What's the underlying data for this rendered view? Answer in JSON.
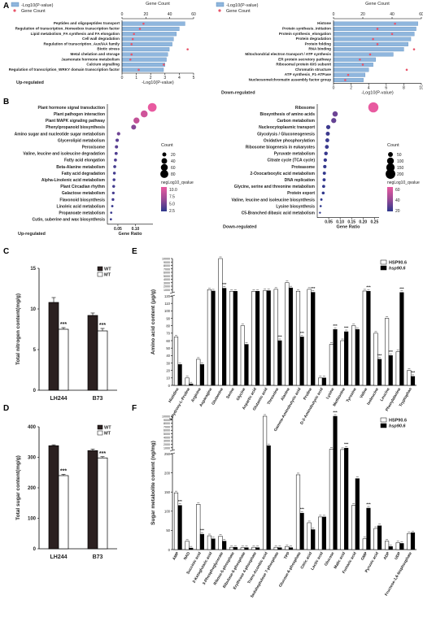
{
  "panel_labels": [
    "A",
    "B",
    "C",
    "D",
    "E",
    "F"
  ],
  "chart_data": [
    {
      "panel": "A",
      "type": "bar",
      "side": "up",
      "top_axis_label": "Gene Count",
      "top_ticks": [
        "0",
        "20",
        "40",
        "60"
      ],
      "top_max": 60,
      "bottom_axis_label": "-Log10(P-value)",
      "bottom_ticks": [
        "0",
        "1",
        "2",
        "3",
        "4",
        "5"
      ],
      "xlim": [
        0,
        5
      ],
      "legend": [
        "-Log10(P-value)",
        "Gene Count"
      ],
      "caption": "Up-regulated",
      "categories": [
        "Peptides and oligopeptides transport",
        "Regulation of transcription_Homeobox transcription factor",
        "Lipid metabolism_FA synthesis and FA elongation",
        "Cell wall degradation",
        "Regulation of transcription_Aux/IAA family",
        "Biotic stress",
        "Metal chelation and storage",
        "Jasmonate hormone metabolism",
        "Calcium signalling",
        "Regulation of transcription_WRKY domain transcription factor"
      ],
      "values": [
        4.4,
        4.0,
        3.8,
        3.6,
        3.5,
        3.3,
        3.2,
        3.1,
        3.0,
        2.9
      ],
      "gene_counts": [
        18,
        15,
        10,
        9,
        8,
        55,
        8,
        7,
        35,
        14
      ]
    },
    {
      "panel": "A",
      "type": "bar",
      "side": "down",
      "top_axis_label": "Gene Count",
      "top_ticks": [
        "0",
        "20",
        "40",
        "60"
      ],
      "top_max": 60,
      "bottom_axis_label": "-Log10(P-value)",
      "bottom_ticks": [
        "0",
        "2",
        "4",
        "6",
        "8",
        "10"
      ],
      "xlim": [
        0,
        10
      ],
      "legend": [
        "-Log10(P-value)",
        "Gene Count"
      ],
      "caption": "Down-regulated",
      "categories": [
        "Histone",
        "Protein synthesis_initiation",
        "Protein synthesis_elongation",
        "Protein degradation",
        "Protein folding",
        "RNA binding",
        "Mitochondrial electron transport / ATP synthesis",
        "ER protein secretory pathway",
        "Ribosomal protein 60S subunit",
        "Chromatin structure",
        "ATP synthesis_F1-ATPase",
        "Nucleosome/chromatin assembly factor group"
      ],
      "values": [
        9.6,
        9.4,
        9.2,
        8.8,
        8.5,
        8.0,
        6.8,
        4.8,
        4.5,
        4.0,
        3.6,
        3.4
      ],
      "gene_counts": [
        42,
        30,
        40,
        27,
        30,
        55,
        25,
        18,
        20,
        50,
        10,
        8
      ]
    },
    {
      "panel": "B",
      "type": "scatter",
      "side": "up",
      "xlabel": "Gene Ratio",
      "xticks": [
        "0.05",
        "0.10"
      ],
      "xlim": [
        0.02,
        0.15
      ],
      "caption": "Up-regulated",
      "size_legend_title": "Count",
      "size_legend": [
        20,
        40,
        60,
        80
      ],
      "color_legend_title": "negLog10_qvalue",
      "color_ticks": [
        "10.0",
        "7.5",
        "5.0",
        "2.5"
      ],
      "color_range": [
        1,
        11
      ],
      "categories": [
        "Plant hormone signal transduction",
        "Plant pathogen interaction",
        "Plant MAPK signaling pathway",
        "Phenylpropanoid biosynthesis",
        "Amino sugar and nucleotide sugar metabolism",
        "Glycerolipid metabolism",
        "Peroxisome",
        "Valine, leucine and isoleucine degradation",
        "Fatty acid elongation",
        "Beta-Alanine metabolism",
        "Fatty acid degradation",
        "Alpha-Linolenic acid metabolism",
        "Plant Circadian rhythm",
        "Galactose metabolism",
        "Flavonoid biosynthesis",
        "Linoleic acid metabolism",
        "Propanoate metabolism",
        "Cutin, suberine and wax biosynthesis"
      ],
      "x": [
        0.148,
        0.125,
        0.103,
        0.095,
        0.052,
        0.048,
        0.046,
        0.045,
        0.043,
        0.041,
        0.04,
        0.039,
        0.038,
        0.037,
        0.036,
        0.034,
        0.031,
        0.03
      ],
      "count": [
        95,
        60,
        45,
        30,
        15,
        14,
        13,
        12,
        11,
        11,
        10,
        10,
        10,
        9,
        9,
        7,
        6,
        6
      ],
      "qvalue": [
        11,
        9,
        8,
        5,
        4,
        3,
        3,
        2.5,
        2.5,
        2,
        2,
        2,
        2,
        2,
        2,
        1.5,
        1.5,
        1.5
      ]
    },
    {
      "panel": "B",
      "type": "scatter",
      "side": "down",
      "xlabel": "Gene Ratio",
      "xticks": [
        "0.05",
        "0.10",
        "0.15",
        "0.20",
        "0.25"
      ],
      "xlim": [
        0.0,
        0.27
      ],
      "caption": "Down-regulated",
      "size_legend_title": "Count",
      "size_legend": [
        50,
        100,
        150,
        200
      ],
      "color_legend_title": "negLog10_qvalue",
      "color_ticks": [
        "60",
        "40",
        "20"
      ],
      "color_range": [
        5,
        75
      ],
      "categories": [
        "Ribosome",
        "Biosynthesis of amino acids",
        "Carbon metabolism",
        "Nucleocytoplasmic transport",
        "Glycolysis / Gluconeogenesis",
        "Oxidative phosphorylation",
        "Ribosome biogenesis in eukaryotes",
        "Pyruvate metabolism",
        "Citrate cycle (TCA cycle)",
        "Proteasome",
        "2-Oxocarboxylic acid metabolism",
        "DNA replication",
        "Glycine, serine and threonine metabolism",
        "Protein export",
        "Valine, leucine and isoleucine biosynthesis",
        "Lysine biosynthesis",
        "C5-Branched dibasic acid metabolism"
      ],
      "x": [
        0.245,
        0.078,
        0.072,
        0.048,
        0.046,
        0.044,
        0.042,
        0.038,
        0.035,
        0.033,
        0.031,
        0.03,
        0.028,
        0.026,
        0.018,
        0.015,
        0.012
      ],
      "count": [
        220,
        60,
        55,
        38,
        35,
        33,
        32,
        28,
        26,
        24,
        22,
        21,
        20,
        18,
        12,
        10,
        8
      ],
      "qvalue": [
        75,
        25,
        22,
        10,
        10,
        9,
        9,
        8,
        8,
        7,
        7,
        7,
        7,
        6,
        6,
        5,
        5
      ]
    },
    {
      "panel": "C",
      "type": "bar",
      "ylabel": "Total nitrogen content(mg/g)",
      "ylim": [
        0,
        15
      ],
      "yticks": [
        0,
        5,
        10,
        15
      ],
      "categories": [
        "LH244",
        "B73"
      ],
      "series": [
        {
          "name": "WT",
          "values": [
            10.8,
            9.2
          ],
          "errors": [
            0.6,
            0.3
          ]
        },
        {
          "name": "MT",
          "values": [
            7.5,
            7.3
          ],
          "errors": [
            0.2,
            0.3
          ]
        }
      ],
      "significance": [
        "***",
        "***"
      ]
    },
    {
      "panel": "D",
      "type": "bar",
      "ylabel": "Total sugar content(mg/g)",
      "ylim": [
        0,
        400
      ],
      "yticks": [
        0,
        100,
        200,
        300,
        400
      ],
      "categories": [
        "LH244",
        "B73"
      ],
      "series": [
        {
          "name": "WT",
          "values": [
            338,
            322
          ],
          "errors": [
            3,
            5
          ]
        },
        {
          "name": "MT",
          "values": [
            240,
            298
          ],
          "errors": [
            4,
            4
          ]
        }
      ],
      "significance": [
        "***",
        "***"
      ]
    },
    {
      "panel": "E",
      "type": "bar",
      "scale": "broken",
      "ylabel": "Amino acid content (μg/g)",
      "yticks_lower": [
        "0",
        "10",
        "20",
        "30",
        "40",
        "50",
        "60",
        "70",
        "80",
        "90",
        "100",
        "110",
        "120"
      ],
      "yticks_upper": [
        "1000",
        "2000",
        "3000",
        "4000",
        "5000",
        "6000",
        "7000",
        "8000",
        "9000",
        "10000"
      ],
      "categories": [
        "Histidine",
        "4-Hydroxy-L-Proline",
        "Arginine",
        "Asparagine",
        "Glutamine",
        "Serine",
        "Glycine",
        "Aspartic acid",
        "Glutamic acid",
        "Threonine",
        "Alanine",
        "Gamma-Aminobutyric acid",
        "Proline",
        "D-2-Aminobutyric acid",
        "Lysine",
        "Methionine",
        "Tyrosine",
        "Valine",
        "Isoleucine",
        "Leucine",
        "Phenylalanine",
        "Tryptophan"
      ],
      "series": [
        {
          "name": "HSP90.6",
          "values": [
            65,
            10,
            35,
            1000,
            10000,
            540,
            80,
            520,
            650,
            1100,
            3000,
            550,
            1100,
            10,
            55,
            60,
            80,
            600,
            70,
            90,
            45,
            20
          ]
        },
        {
          "name": "hsp90.6",
          "values": [
            28,
            2,
            28,
            600,
            1400,
            520,
            55,
            520,
            700,
            60,
            1500,
            65,
            220,
            10,
            75,
            72,
            75,
            540,
            35,
            40,
            170,
            12
          ]
        }
      ],
      "significance": [
        "",
        "",
        "",
        "",
        "***",
        "",
        "",
        "",
        "",
        "***",
        "",
        "***",
        "***",
        "",
        "***",
        "***",
        "",
        "***",
        "***",
        "***",
        "***",
        "***"
      ]
    },
    {
      "panel": "F",
      "type": "bar",
      "scale": "broken",
      "ylabel": "Sugar metabolite content (ng/mg)",
      "yticks_lower": [
        "0",
        "50",
        "100",
        "150",
        "200",
        "250"
      ],
      "yticks_upper": [
        "1000",
        "2000",
        "3000",
        "4000",
        "5000",
        "6000",
        "7000",
        "8000",
        "9000",
        "10000"
      ],
      "categories": [
        "AMP",
        "NAD",
        "Succinic acid",
        "2-Ketoglutaric acid",
        "3-Phosphoglycerate",
        "Ribose-5-phosphate",
        "Ribulose-5-phosphate",
        "Erythrose 4-phosphate",
        "Trans-Aconitic acid",
        "Sedoheptulose 7-phosphate",
        "TPP",
        "Glucose-6-phosphate",
        "Citric acid",
        "Lactic acid",
        "Glucose",
        "Malic acid",
        "Fumaric acid",
        "GMP",
        "Pyruvic acid",
        "ADP",
        "UDP",
        "Fructose-1,6-bisphosphate"
      ],
      "series": [
        {
          "name": "HSP90.6",
          "values": [
            148,
            22,
            118,
            36,
            35,
            6,
            5,
            6,
            10000,
            6,
            8,
            195,
            70,
            85,
            600,
            500,
            115,
            28,
            55,
            22,
            18,
            42
          ]
        },
        {
          "name": "hsp90.6",
          "values": [
            115,
            4,
            40,
            28,
            22,
            6,
            5,
            5,
            1600,
            5,
            5,
            95,
            52,
            85,
            10000,
            900,
            185,
            108,
            62,
            8,
            16,
            44
          ]
        }
      ],
      "significance": [
        "***",
        "",
        "***",
        "",
        "",
        "",
        "",
        "",
        "",
        "",
        "",
        "***",
        "",
        "",
        "***",
        "***",
        "",
        "***",
        "",
        "",
        "",
        ""
      ]
    }
  ]
}
